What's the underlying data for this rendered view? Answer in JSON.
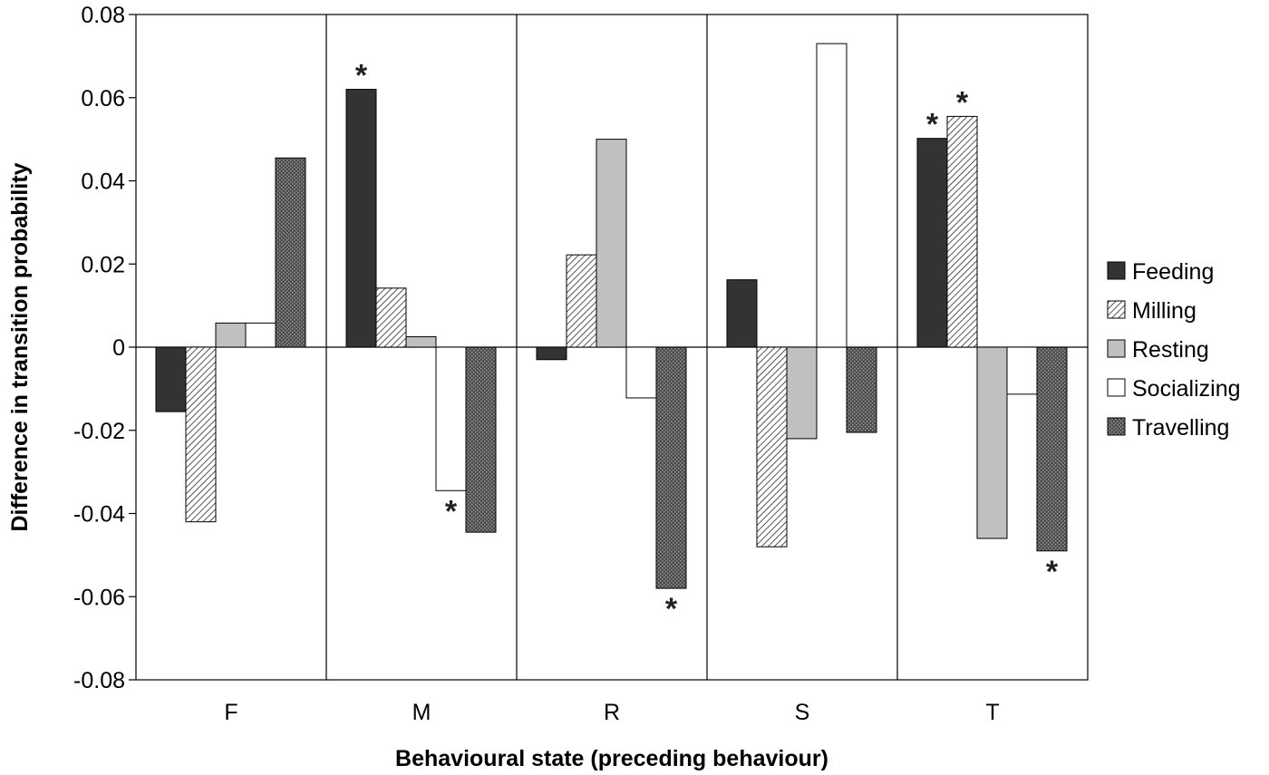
{
  "chart_data": {
    "type": "bar",
    "title": "",
    "xlabel": "Behavioural state (preceding behaviour)",
    "ylabel": "Difference in transition probability",
    "ylim": [
      -0.08,
      0.08
    ],
    "yticks": [
      0.08,
      0.06,
      0.04,
      0.02,
      0,
      -0.02,
      -0.04,
      -0.06,
      -0.08
    ],
    "ytick_labels": [
      "0.08",
      "0.06",
      "0.04",
      "0.02",
      "0",
      "-0.02",
      "-0.04",
      "-0.06",
      "-0.08"
    ],
    "categories": [
      "F",
      "M",
      "R",
      "S",
      "T"
    ],
    "legend_position": "right",
    "significance_marker": "*",
    "series": [
      {
        "name": "Feeding",
        "pattern": "solid-dark",
        "values": [
          -0.0155,
          0.062,
          -0.003,
          0.0162,
          0.0502
        ],
        "significant": [
          false,
          true,
          false,
          false,
          true
        ]
      },
      {
        "name": "Milling",
        "pattern": "diagonal-hatch",
        "values": [
          -0.042,
          0.0142,
          0.0222,
          -0.048,
          0.0555
        ],
        "significant": [
          false,
          false,
          false,
          false,
          true
        ]
      },
      {
        "name": "Resting",
        "pattern": "solid-light-gray",
        "values": [
          0.0058,
          0.0025,
          0.05,
          -0.022,
          -0.046
        ],
        "significant": [
          false,
          false,
          false,
          false,
          false
        ]
      },
      {
        "name": "Socializing",
        "pattern": "white",
        "values": [
          0.0058,
          -0.0345,
          -0.0122,
          0.073,
          -0.0113
        ],
        "significant": [
          false,
          true,
          false,
          false,
          false
        ]
      },
      {
        "name": "Travelling",
        "pattern": "crosshatch-dark",
        "values": [
          0.0455,
          -0.0445,
          -0.058,
          -0.0205,
          -0.049
        ],
        "significant": [
          false,
          false,
          true,
          false,
          true
        ]
      }
    ]
  }
}
